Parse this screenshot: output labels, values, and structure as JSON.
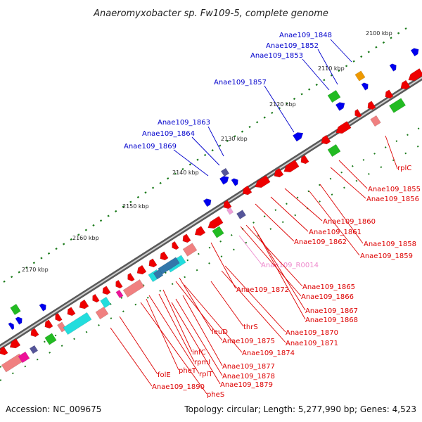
{
  "title": "Anaeromyxobacter sp. Fw109-5, complete genome",
  "footer": {
    "accession": "Accession: NC_009675",
    "summary": "Topology: circular; Length: 5,277,990 bp; Genes: 4,523"
  },
  "ticks": [
    "2100 kbp",
    "2110 kbp",
    "2120 kbp",
    "2130 kbp",
    "2140 kbp",
    "2150 kbp",
    "2160 kbp",
    "2170 kbp"
  ],
  "colors": {
    "forward": "#0000ee",
    "reverse": "#ee0000",
    "rna": "#ee88cc",
    "backbone": "#808080",
    "tick": "#1a7a1a"
  },
  "labels_top": [
    "Anae109_1848",
    "Anae109_1852",
    "Anae109_1853",
    "Anae109_1857",
    "Anae109_1863",
    "Anae109_1864",
    "Anae109_1869"
  ],
  "labels_right": [
    "rplC",
    "Anae109_1855",
    "Anae109_1856",
    "Anae109_1860",
    "Anae109_1861",
    "Anae109_1862",
    "Anae109_1858",
    "Anae109_1859"
  ],
  "labels_rna": [
    "Anae109_R0014"
  ],
  "labels_bottom": [
    "Anae109_1872",
    "Anae109_1865",
    "Anae109_1866",
    "Anae109_1867",
    "Anae109_1868",
    "thrS",
    "Anae109_1870",
    "Anae109_1871",
    "leuD",
    "Anae109_1875",
    "Anae109_1874",
    "infC",
    "rpmI",
    "Anae109_1877",
    "Anae109_1878",
    "Anae109_1879",
    "pheT",
    "rplT",
    "folE",
    "Anae109_1890",
    "pheS"
  ]
}
